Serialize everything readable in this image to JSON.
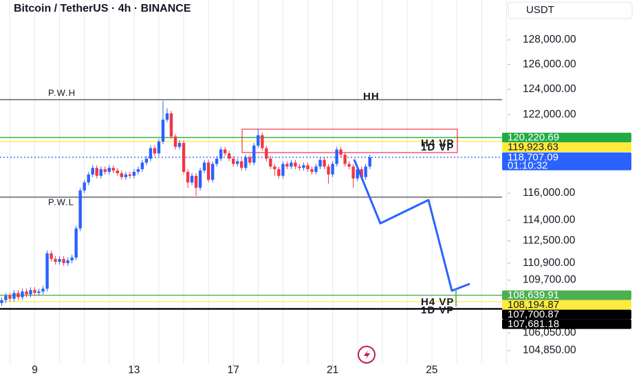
{
  "chart_data": {
    "type": "candlestick",
    "title": "Bitcoin / TetherUS · 4h · BINANCE",
    "currency": "USDT",
    "log_scale": true,
    "colors": {
      "up": "#2962ff",
      "down": "#f23645"
    },
    "xlim": [
      7.6,
      28.05
    ],
    "ylim": [
      103930,
      131320
    ],
    "xticks": [
      9,
      13,
      17,
      21,
      25
    ],
    "yticks": [
      {
        "value": 128000,
        "label": "128,000.00"
      },
      {
        "value": 126000,
        "label": "126,000.00"
      },
      {
        "value": 124000,
        "label": "124,000.00"
      },
      {
        "value": 122000,
        "label": "122,000.00"
      },
      {
        "value": 116000,
        "label": "116,000.00"
      },
      {
        "value": 114000,
        "label": "114,000.00"
      },
      {
        "value": 112500,
        "label": "112,500.00"
      },
      {
        "value": 110900,
        "label": "110,900.00"
      },
      {
        "value": 109700,
        "label": "109,700.00"
      },
      {
        "value": 106050,
        "label": "106,050.00"
      },
      {
        "value": 104850,
        "label": "104,850.00"
      }
    ],
    "price_labels": [
      {
        "value": 120220.69,
        "label": "120,220.69",
        "color": "#22ab45"
      },
      {
        "value": 119923.63,
        "label": "119,923.63",
        "color": "#ffeb3b"
      },
      {
        "value": 118707.09,
        "label": "118,707.09",
        "color": "#2962ff",
        "countdown": "01:10:32"
      },
      {
        "value": 108639.91,
        "label": "108,639.91",
        "color": "#4caf50"
      },
      {
        "value": 108194.87,
        "label": "108,194.87",
        "color": "#ffeb3b"
      },
      {
        "value": 107700.87,
        "label": "107,700.87",
        "color": "#000000"
      },
      {
        "value": 107681.18,
        "label": "107,681.18",
        "color": "#000000"
      }
    ],
    "levels": [
      {
        "name": "P.W.H",
        "value": 123180,
        "color": "#131722"
      },
      {
        "name": "P.W.L",
        "value": 115700,
        "color": "#131722"
      }
    ],
    "annotations": [
      "HH",
      "H4 VP",
      "1D VP",
      "H4 VP",
      "1D VP"
    ],
    "x": [
      7.667,
      7.833,
      8,
      8.167,
      8.333,
      8.5,
      8.667,
      8.833,
      9,
      9.167,
      9.333,
      9.5,
      9.667,
      9.833,
      10,
      10.167,
      10.333,
      10.5,
      10.667,
      10.833,
      11,
      11.167,
      11.333,
      11.5,
      11.667,
      11.833,
      12,
      12.167,
      12.333,
      12.5,
      12.667,
      12.833,
      13,
      13.167,
      13.333,
      13.5,
      13.667,
      13.833,
      14,
      14.167,
      14.333,
      14.5,
      14.667,
      14.833,
      15,
      15.167,
      15.333,
      15.5,
      15.667,
      15.833,
      16,
      16.167,
      16.333,
      16.5,
      16.667,
      16.833,
      17,
      17.167,
      17.333,
      17.5,
      17.667,
      17.833,
      18,
      18.167,
      18.333,
      18.5,
      18.667,
      18.833,
      19,
      19.167,
      19.333,
      19.5,
      19.667,
      19.833,
      20,
      20.167,
      20.333,
      20.5,
      20.667,
      20.833,
      21,
      21.167,
      21.333,
      21.5,
      21.667,
      21.833,
      22,
      22.167,
      22.333,
      22.5
    ],
    "open": [
      108100,
      108300,
      108600,
      108400,
      108800,
      108500,
      108900,
      108700,
      109000,
      108800,
      108900,
      109100,
      111600,
      111200,
      111000,
      111200,
      110900,
      111100,
      111300,
      113400,
      116200,
      116800,
      117400,
      117900,
      117300,
      117800,
      117600,
      117900,
      117700,
      117500,
      117200,
      117400,
      117300,
      117600,
      117800,
      118300,
      118600,
      119400,
      119000,
      119900,
      121600,
      122100,
      120300,
      119500,
      119800,
      117600,
      116800,
      117300,
      116400,
      117700,
      118300,
      117000,
      118200,
      118600,
      119300,
      119000,
      118600,
      118200,
      118400,
      117900,
      118700,
      118300,
      119600,
      120400,
      119400,
      118600,
      118000,
      117800,
      117300,
      118200,
      118000,
      118300,
      118000,
      117900,
      118100,
      117800,
      117600,
      118000,
      118500,
      118000,
      117400,
      118200,
      119300,
      118900,
      118200,
      118000,
      117100,
      117800,
      117200,
      118000
    ],
    "high": [
      108500,
      108800,
      108800,
      109000,
      109000,
      109100,
      109100,
      109200,
      109200,
      109100,
      109300,
      111800,
      111800,
      111400,
      111400,
      111400,
      111300,
      111500,
      113600,
      116400,
      117000,
      117600,
      118100,
      118100,
      118000,
      118000,
      118100,
      118100,
      117900,
      117700,
      117600,
      117600,
      117800,
      118000,
      118500,
      118800,
      119600,
      119600,
      120100,
      123100,
      122500,
      122300,
      120500,
      120000,
      120000,
      117800,
      117500,
      117500,
      117900,
      118500,
      118500,
      118400,
      118800,
      119500,
      119500,
      119200,
      118800,
      118600,
      118600,
      118900,
      118900,
      119800,
      120900,
      120600,
      119600,
      118800,
      118200,
      118000,
      118400,
      118400,
      118500,
      118500,
      118200,
      118300,
      118300,
      118000,
      118200,
      118700,
      118700,
      118200,
      118400,
      119500,
      119500,
      119100,
      118400,
      118200,
      118000,
      118000,
      118200,
      118900
    ],
    "low": [
      107900,
      108100,
      108200,
      108200,
      108300,
      108300,
      108500,
      108500,
      108600,
      108600,
      108700,
      108900,
      111000,
      110800,
      110800,
      110700,
      110700,
      110900,
      111100,
      113200,
      116000,
      116600,
      117200,
      117100,
      117100,
      117400,
      117400,
      117500,
      117300,
      117000,
      117000,
      117100,
      117100,
      117400,
      117600,
      118100,
      118400,
      118800,
      118800,
      119700,
      121400,
      120100,
      119300,
      119300,
      117400,
      116400,
      116600,
      115800,
      116200,
      117500,
      116800,
      116800,
      118000,
      118400,
      118800,
      118400,
      118000,
      118000,
      117700,
      117700,
      118100,
      118100,
      119400,
      119200,
      118400,
      117800,
      117300,
      117100,
      117100,
      117800,
      117800,
      117800,
      117700,
      117700,
      117600,
      117400,
      117400,
      117800,
      117800,
      116700,
      117200,
      118000,
      118700,
      118000,
      117800,
      116400,
      116900,
      117000,
      117000,
      117800
    ],
    "close": [
      108300,
      108600,
      108400,
      108800,
      108500,
      108900,
      108700,
      109000,
      108800,
      108900,
      109100,
      111600,
      111200,
      111000,
      111200,
      110900,
      111100,
      111300,
      113400,
      116200,
      116800,
      117400,
      117900,
      117300,
      117800,
      117600,
      117900,
      117700,
      117500,
      117200,
      117400,
      117300,
      117600,
      117800,
      118300,
      118600,
      119400,
      119000,
      119900,
      121600,
      122100,
      120300,
      119500,
      119800,
      117600,
      116800,
      117300,
      116400,
      117700,
      118300,
      117000,
      118200,
      118600,
      119300,
      119000,
      118600,
      118200,
      118400,
      117900,
      118700,
      118300,
      119600,
      120400,
      119400,
      118600,
      118000,
      117800,
      117300,
      118200,
      118000,
      118300,
      118000,
      117900,
      118100,
      117800,
      117600,
      118000,
      118500,
      118000,
      117400,
      118200,
      119300,
      118900,
      118200,
      118000,
      117100,
      117800,
      117200,
      118000,
      118700
    ]
  }
}
